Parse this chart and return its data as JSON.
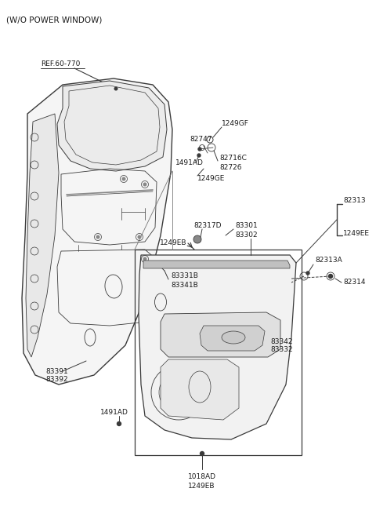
{
  "title": "(W/O POWER WINDOW)",
  "bg_color": "#ffffff",
  "line_color": "#3a3a3a",
  "text_color": "#1a1a1a",
  "labels": {
    "ref": "REF.60-770",
    "l1249GF": "1249GF",
    "l82747": "82747",
    "l1491AD_top": "1491AD",
    "l82716C": "82716C",
    "l82726": "82726",
    "l1249GE": "1249GE",
    "l82317D": "82317D",
    "l83301": "83301",
    "l83302": "83302",
    "l1249EB_top": "1249EB",
    "l83331B": "83331B",
    "l83341B": "83341B",
    "l83391": "83391",
    "l83392": "83392",
    "l1491AD_bot": "1491AD",
    "l83342": "83342",
    "l83332": "83332",
    "l82313": "82313",
    "l1249EE": "1249EE",
    "l82313A": "82313A",
    "l82314": "82314",
    "l1018AD": "1018AD",
    "l1249EB_bot": "1249EB"
  },
  "figsize": [
    4.8,
    6.55
  ],
  "dpi": 100
}
